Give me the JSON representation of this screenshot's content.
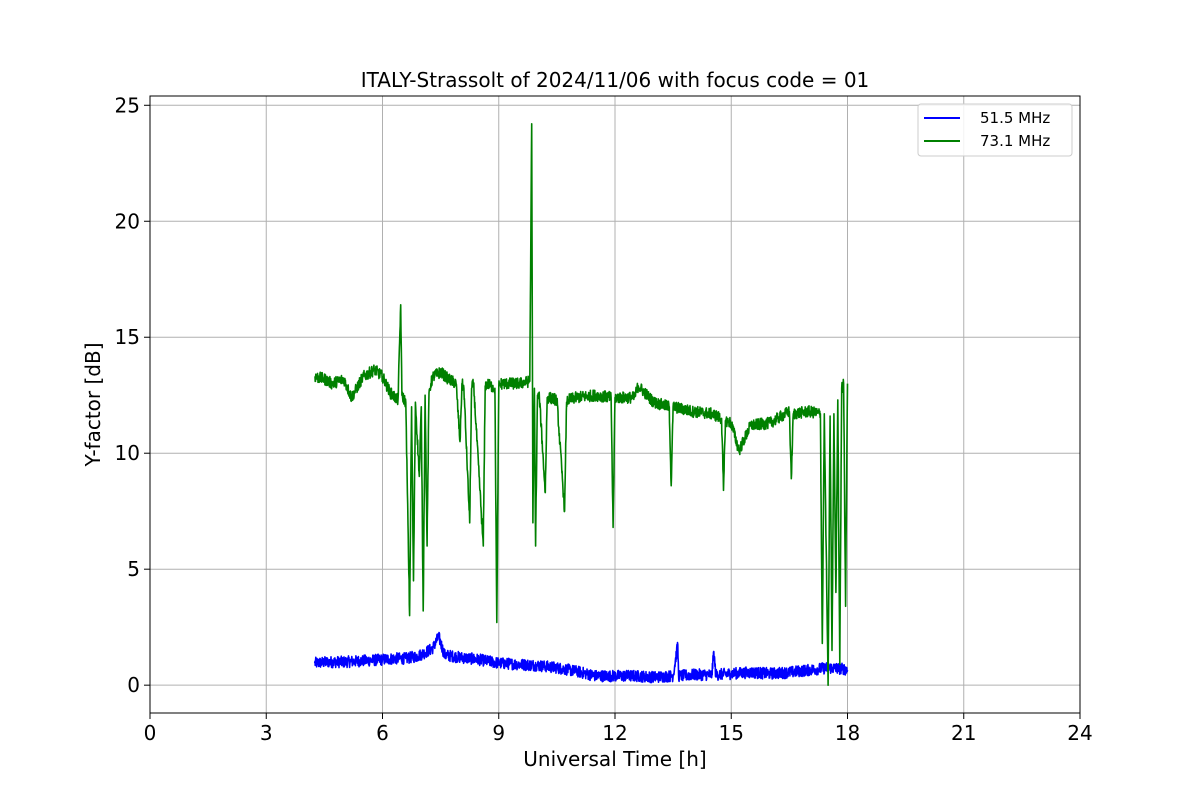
{
  "chart_data": {
    "type": "line",
    "title": "ITALY-Strassolt of 2024/11/06 with focus code = 01",
    "xlabel": "Universal Time [h]",
    "ylabel": "Y-factor [dB]",
    "xlim": [
      0,
      24
    ],
    "ylim": [
      -1.2,
      25.4
    ],
    "xticks": [
      0,
      3,
      6,
      9,
      12,
      15,
      18,
      21,
      24
    ],
    "yticks": [
      0,
      5,
      10,
      15,
      20,
      25
    ],
    "grid": true,
    "legend_position": "upper-right",
    "series": [
      {
        "name": "51.5 MHz",
        "color": "#0000ff",
        "noise": 0.25,
        "x": [
          4.25,
          4.6,
          5.0,
          5.5,
          6.0,
          6.3,
          6.6,
          6.9,
          7.1,
          7.3,
          7.45,
          7.6,
          8.0,
          8.5,
          9.0,
          9.5,
          10.0,
          10.5,
          11.0,
          11.5,
          12.0,
          12.5,
          13.0,
          13.5,
          13.62,
          13.64,
          13.7,
          14.0,
          14.5,
          14.55,
          14.6,
          15.0,
          15.5,
          16.0,
          16.5,
          17.0,
          17.5,
          17.9,
          18.0
        ],
        "y": [
          0.95,
          1.0,
          1.0,
          1.05,
          1.1,
          1.15,
          1.15,
          1.25,
          1.4,
          1.6,
          2.1,
          1.3,
          1.2,
          1.1,
          0.95,
          0.9,
          0.85,
          0.75,
          0.6,
          0.4,
          0.4,
          0.4,
          0.35,
          0.4,
          1.75,
          0.4,
          0.4,
          0.45,
          0.45,
          1.45,
          0.45,
          0.5,
          0.55,
          0.5,
          0.55,
          0.65,
          0.75,
          0.7,
          0.65
        ]
      },
      {
        "name": "73.1 MHz",
        "color": "#008000",
        "noise": 0.25,
        "x": [
          4.25,
          4.5,
          4.7,
          5.0,
          5.2,
          5.5,
          5.8,
          6.0,
          6.2,
          6.4,
          6.47,
          6.5,
          6.6,
          6.7,
          6.75,
          6.8,
          6.85,
          6.95,
          7.0,
          7.05,
          7.1,
          7.15,
          7.2,
          7.25,
          7.3,
          7.5,
          7.7,
          7.9,
          8.0,
          8.05,
          8.1,
          8.25,
          8.3,
          8.35,
          8.6,
          8.65,
          8.7,
          8.9,
          8.95,
          9.0,
          9.05,
          9.5,
          9.8,
          9.85,
          9.88,
          9.92,
          9.95,
          10.0,
          10.05,
          10.2,
          10.25,
          10.3,
          10.5,
          10.7,
          10.75,
          10.8,
          11.0,
          11.5,
          11.9,
          11.95,
          12.0,
          12.5,
          12.6,
          13.0,
          13.4,
          13.45,
          13.5,
          14.0,
          14.5,
          14.75,
          14.8,
          14.85,
          15.0,
          15.2,
          15.5,
          16.0,
          16.2,
          16.5,
          16.55,
          16.6,
          17.0,
          17.3,
          17.35,
          17.4,
          17.5,
          17.55,
          17.6,
          17.65,
          17.7,
          17.75,
          17.8,
          17.85,
          17.9,
          17.95,
          18.0
        ],
        "y": [
          13.3,
          13.2,
          13.0,
          13.2,
          12.4,
          13.3,
          13.6,
          13.3,
          12.6,
          12.3,
          16.4,
          12.5,
          12.2,
          3.0,
          12.0,
          4.5,
          12.2,
          9.0,
          12.0,
          3.2,
          12.5,
          6.0,
          12.6,
          13.0,
          13.3,
          13.5,
          13.2,
          13.0,
          10.5,
          13.0,
          12.8,
          7.0,
          12.8,
          13.0,
          6.0,
          12.9,
          13.0,
          12.8,
          2.7,
          12.9,
          13.0,
          13.0,
          13.1,
          24.2,
          7.0,
          12.8,
          6.0,
          12.5,
          12.4,
          8.3,
          12.4,
          12.4,
          12.3,
          7.5,
          12.2,
          12.3,
          12.4,
          12.5,
          12.4,
          6.8,
          12.4,
          12.4,
          12.9,
          12.2,
          12.0,
          8.6,
          12.0,
          11.8,
          11.7,
          11.5,
          8.4,
          11.4,
          11.3,
          10.1,
          11.2,
          11.3,
          11.5,
          11.8,
          8.9,
          11.7,
          11.8,
          11.7,
          1.8,
          11.7,
          0.0,
          11.6,
          1.5,
          11.7,
          4.0,
          12.3,
          0.9,
          12.8,
          13.0,
          3.4,
          13.0
        ]
      }
    ]
  }
}
